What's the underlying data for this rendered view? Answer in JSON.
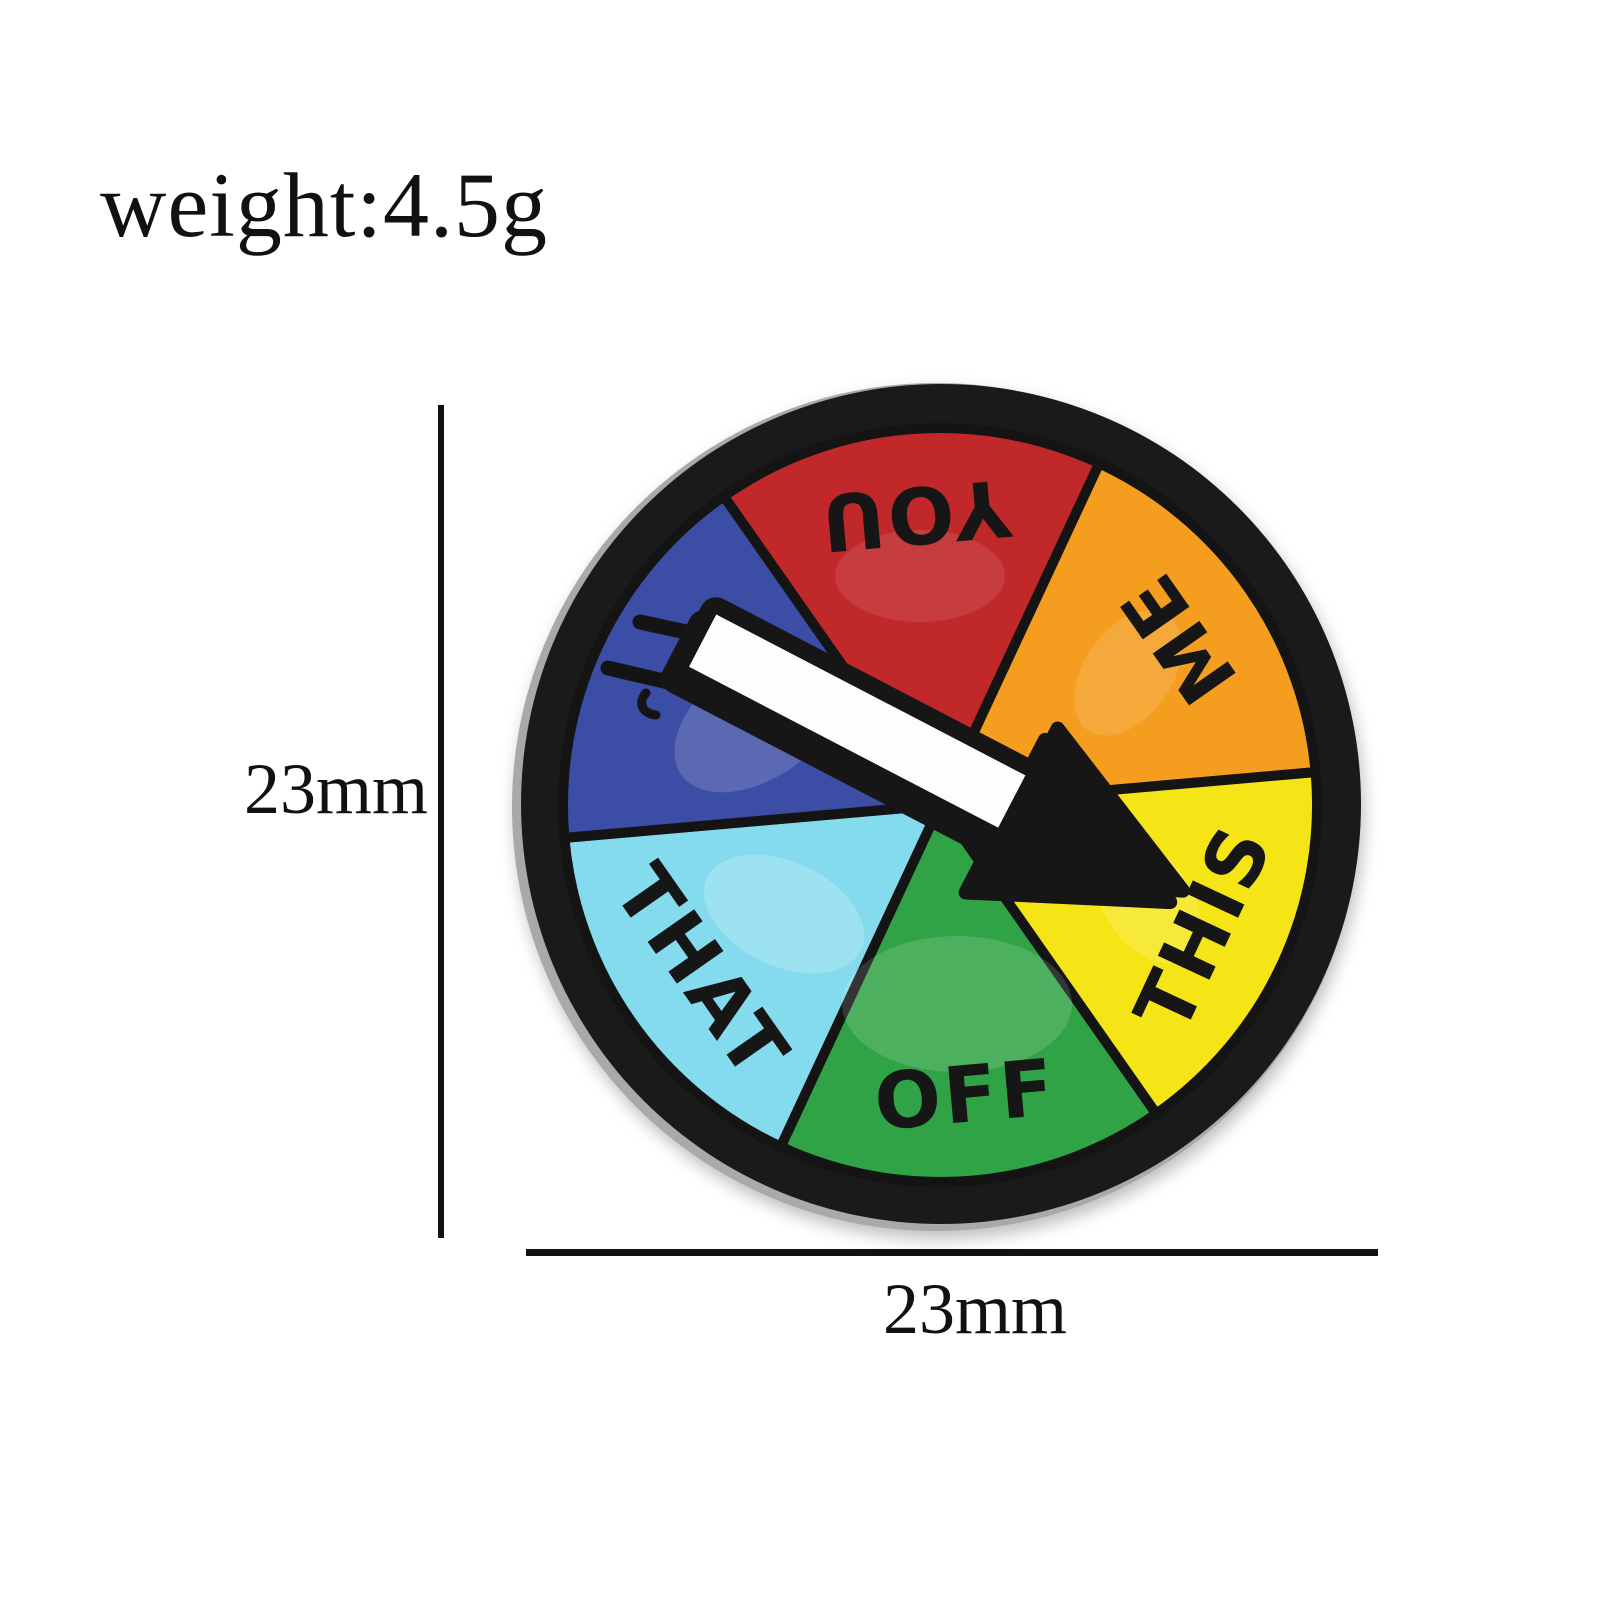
{
  "annotations": {
    "weight": "weight:4.5g",
    "height": "23mm",
    "width": "23mm"
  },
  "wheel": {
    "edge_color": "#a9a9a9",
    "rim_color": "#1a1a1a",
    "divider_color": "#141414",
    "label_color": "#161616",
    "segments": [
      {
        "label": "YOU",
        "color": "#c1282a",
        "center_angle": 95,
        "text_rotation": 175
      },
      {
        "label": "ME",
        "color": "#f49d1e",
        "center_angle": 35,
        "text_rotation": -125
      },
      {
        "label": "THIS",
        "color": "#f5e517",
        "center_angle": -25,
        "text_rotation": -65
      },
      {
        "label": "OFF",
        "color": "#2fa345",
        "center_angle": -85,
        "text_rotation": -5
      },
      {
        "label": "THAT",
        "color": "#85dbee",
        "center_angle": 215,
        "text_rotation": 55
      },
      {
        "label": "",
        "color": "#3c4da5",
        "center_angle": 155,
        "text_rotation": 115
      }
    ],
    "arrow": {
      "shaft_color": "#fdfdfd",
      "outline_color": "#161616",
      "angle_deg": 27.5,
      "points_to": "THIS"
    }
  }
}
